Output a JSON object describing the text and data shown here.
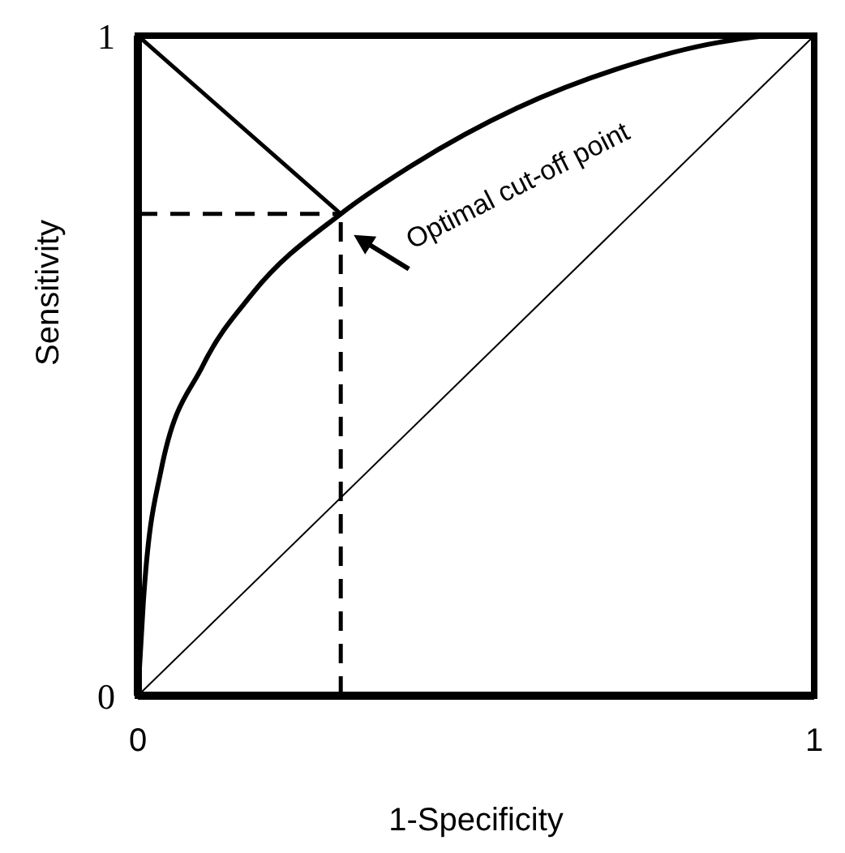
{
  "chart_data": {
    "type": "line",
    "xlabel": "1-Specificity",
    "ylabel": "Sensitivity",
    "xlim": [
      0,
      1
    ],
    "ylim": [
      0,
      1
    ],
    "xticks": [
      0,
      1
    ],
    "yticks": [
      0,
      1
    ],
    "marker": "none",
    "series": [
      {
        "color": "#000000",
        "line_style": "solid",
        "x": [
          0,
          0.008,
          0.034,
          0.096,
          0.17,
          0.3,
          0.4,
          0.56,
          0.71,
          0.86,
          0.94,
          1
        ],
        "values": [
          0,
          0.14,
          0.34,
          0.5,
          0.61,
          0.73,
          0.8,
          0.89,
          0.95,
          0.99,
          1,
          1
        ]
      },
      {
        "color": "#000000",
        "line_style": "solid",
        "x": [
          0,
          1
        ],
        "values": [
          0,
          1
        ]
      },
      {
        "color": "#000000",
        "line_style": "solid",
        "x": [
          0,
          0.3
        ],
        "values": [
          1,
          0.73
        ]
      },
      {
        "color": "#000000",
        "line_style": "dashed",
        "x": [
          0,
          0.3
        ],
        "values": [
          0.73,
          0.73
        ]
      },
      {
        "color": "#000000",
        "line_style": "dashed",
        "x": [
          0.3,
          0.3
        ],
        "values": [
          0,
          0.73
        ]
      }
    ],
    "annotations": [
      {
        "text": "Optimal cut-off point",
        "x": 0.3,
        "y": 0.73
      }
    ]
  }
}
